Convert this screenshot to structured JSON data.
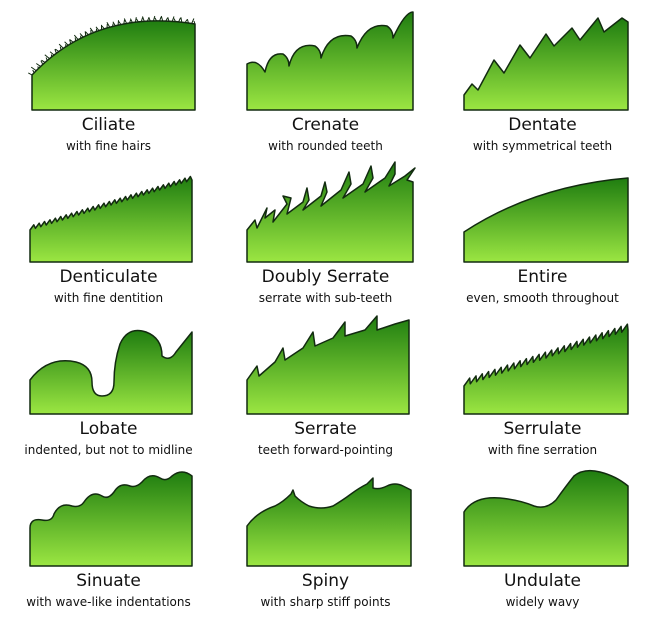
{
  "colors": {
    "leaf_top": "#1f7d10",
    "leaf_bottom": "#9be642",
    "outline": "#122b10"
  },
  "margins": [
    {
      "key": "ciliate",
      "name": "Ciliate",
      "desc": "with fine hairs",
      "icon": "ciliate-margin-icon"
    },
    {
      "key": "crenate",
      "name": "Crenate",
      "desc": "with rounded teeth",
      "icon": "crenate-margin-icon"
    },
    {
      "key": "dentate",
      "name": "Dentate",
      "desc": "with symmetrical teeth",
      "icon": "dentate-margin-icon"
    },
    {
      "key": "denticulate",
      "name": "Denticulate",
      "desc": "with fine dentition",
      "icon": "denticulate-margin-icon"
    },
    {
      "key": "doubly-serrate",
      "name": "Doubly Serrate",
      "desc": "serrate with sub-teeth",
      "icon": "doubly-serrate-margin-icon"
    },
    {
      "key": "entire",
      "name": "Entire",
      "desc": "even, smooth throughout",
      "icon": "entire-margin-icon"
    },
    {
      "key": "lobate",
      "name": "Lobate",
      "desc": "indented, but not to midline",
      "icon": "lobate-margin-icon"
    },
    {
      "key": "serrate",
      "name": "Serrate",
      "desc": "teeth forward-pointing",
      "icon": "serrate-margin-icon"
    },
    {
      "key": "serrulate",
      "name": "Serrulate",
      "desc": "with fine serration",
      "icon": "serrulate-margin-icon"
    },
    {
      "key": "sinuate",
      "name": "Sinuate",
      "desc": "with wave-like indentations",
      "icon": "sinuate-margin-icon"
    },
    {
      "key": "spiny",
      "name": "Spiny",
      "desc": "with sharp stiff points",
      "icon": "spiny-margin-icon"
    },
    {
      "key": "undulate",
      "name": "Undulate",
      "desc": "widely wavy",
      "icon": "undulate-margin-icon"
    }
  ]
}
